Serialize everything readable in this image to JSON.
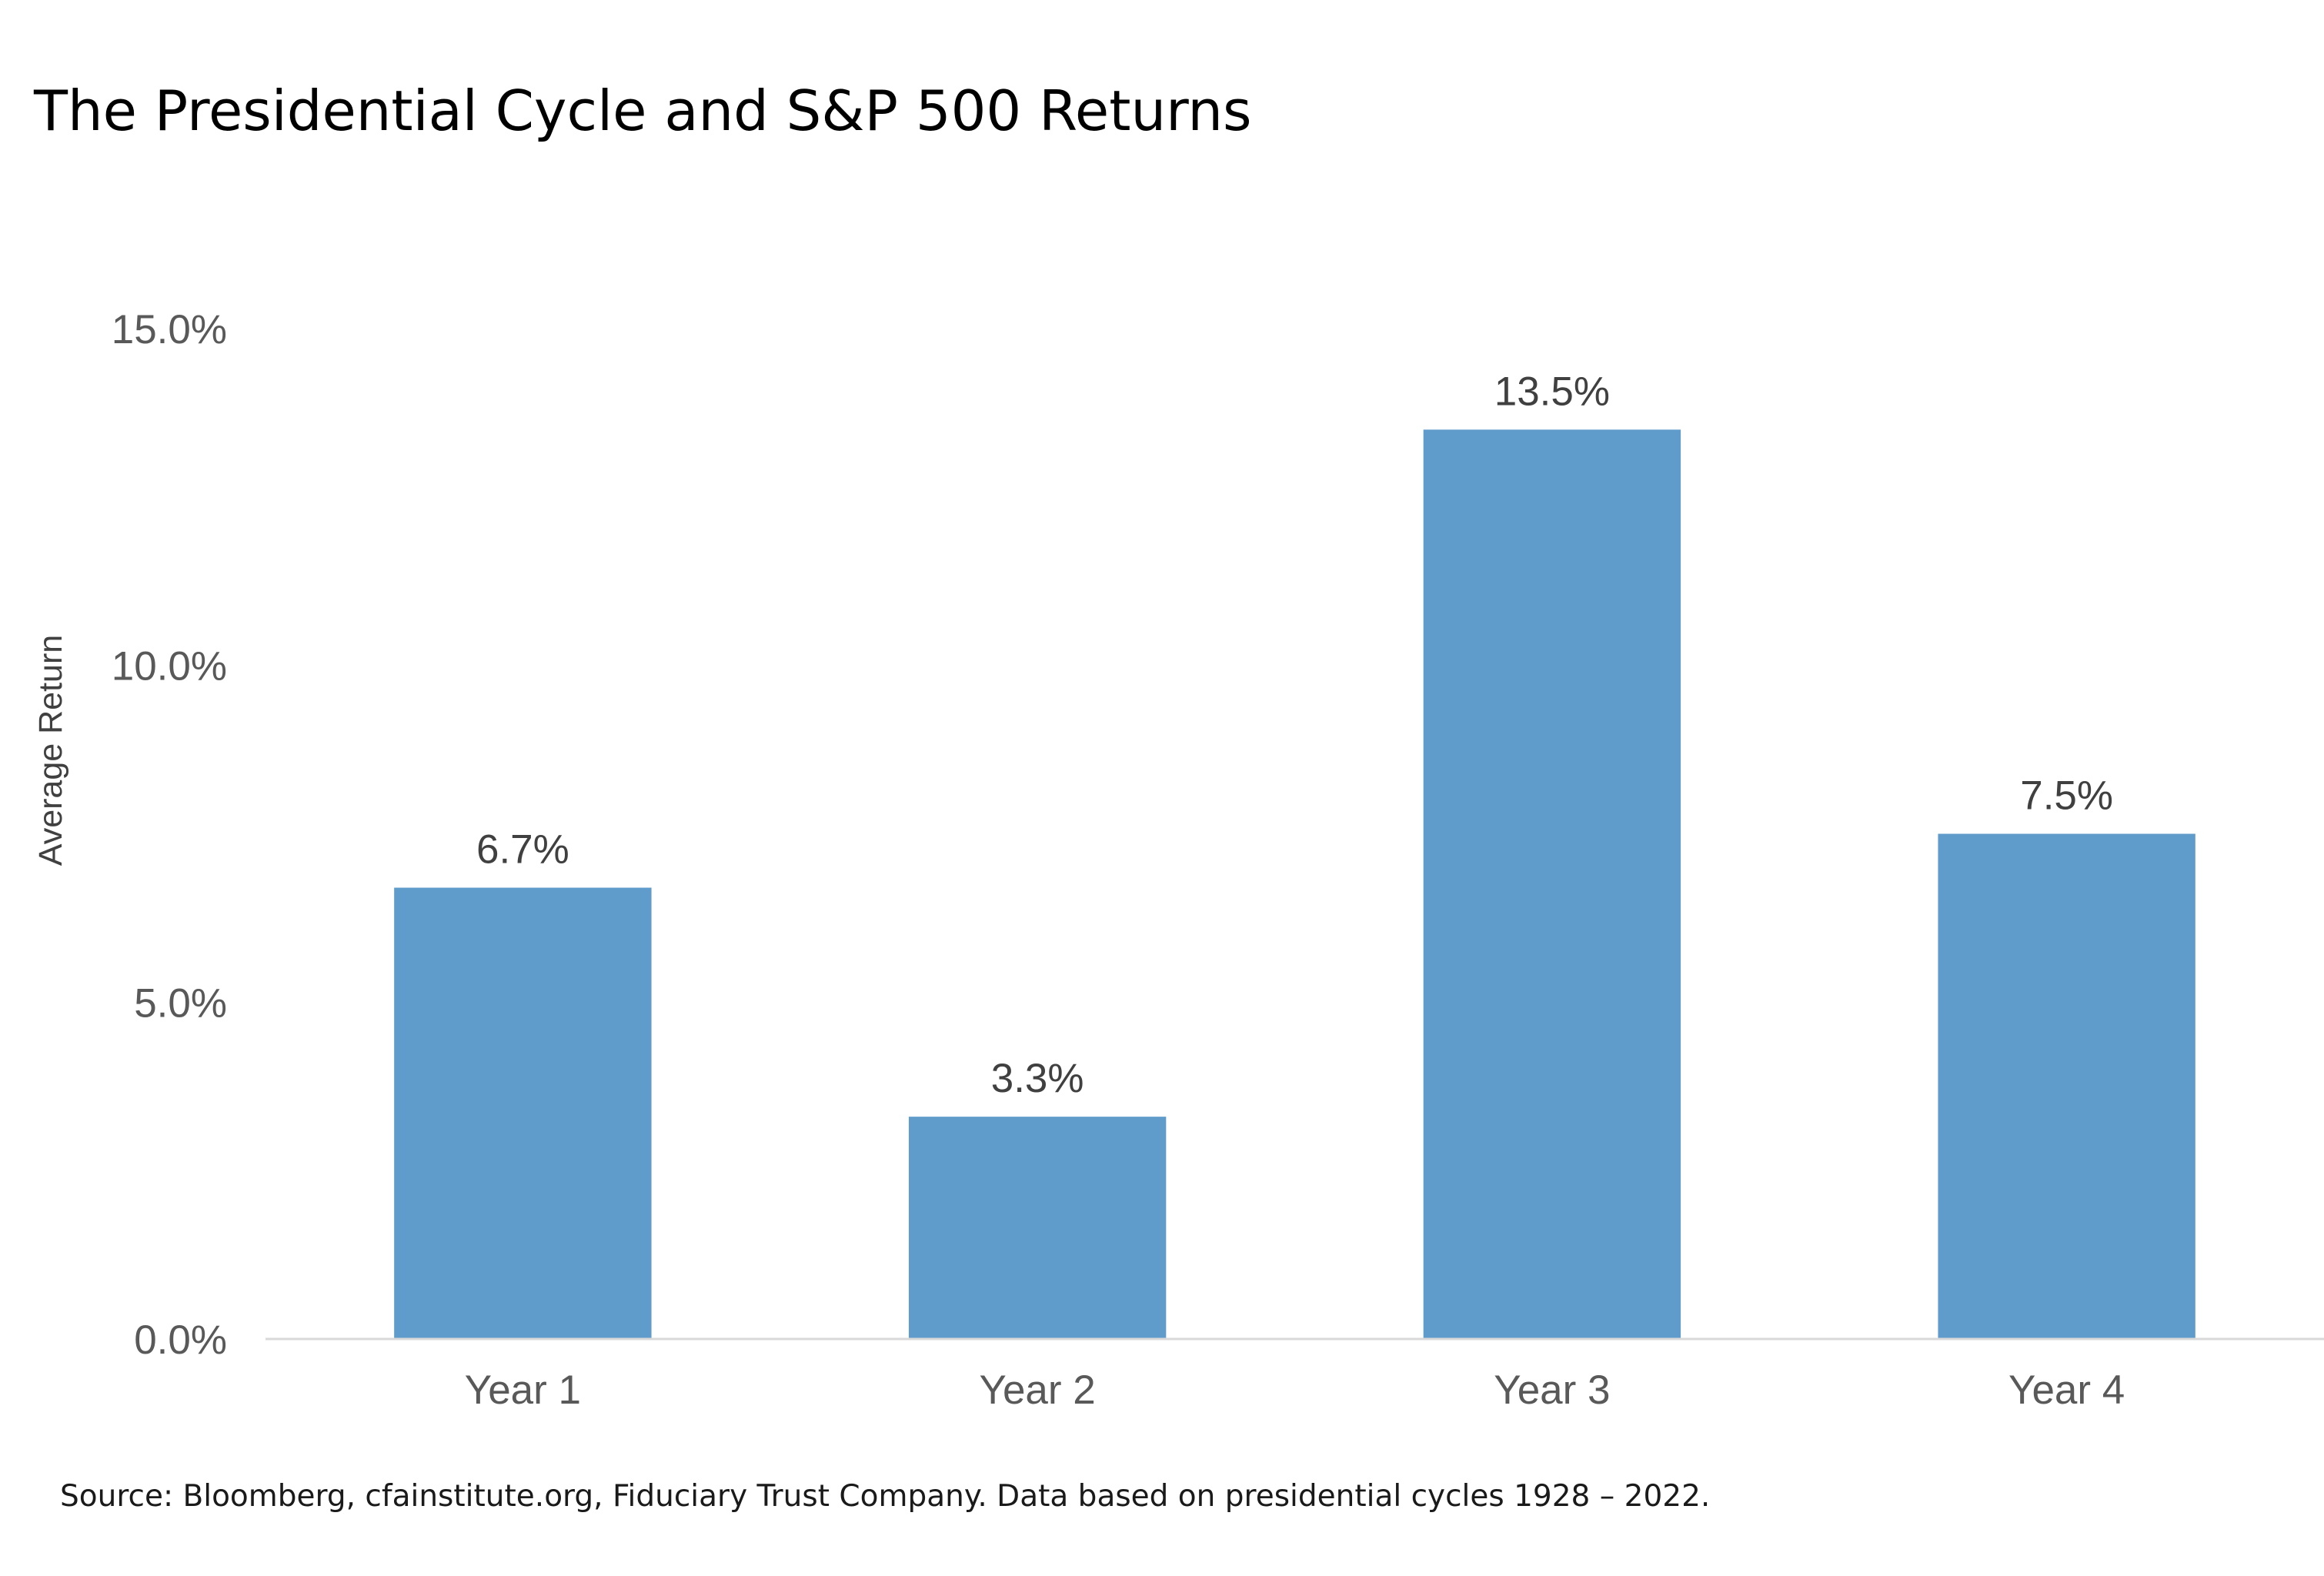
{
  "chart_data": {
    "type": "bar",
    "title": "The Presidential Cycle and S&P 500 Returns",
    "ylabel": "Average Return",
    "xlabel": "",
    "categories": [
      "Year 1",
      "Year 2",
      "Year 3",
      "Year 4"
    ],
    "values": [
      6.7,
      3.3,
      13.5,
      7.5
    ],
    "data_labels": [
      "6.7%",
      "3.3%",
      "13.5%",
      "7.5%"
    ],
    "ylim": [
      0,
      15
    ],
    "y_ticks": [
      0,
      5,
      10,
      15
    ],
    "y_tick_labels": [
      "0.0%",
      "5.0%",
      "10.0%",
      "15.0%"
    ],
    "grid": false,
    "legend": "none",
    "bar_color": "#5F9BCB",
    "axis_color": "#D9D9D9",
    "source": "Source: Bloomberg, cfainstitute.org, Fiduciary Trust Company. Data based on presidential cycles 1928 – 2022."
  }
}
